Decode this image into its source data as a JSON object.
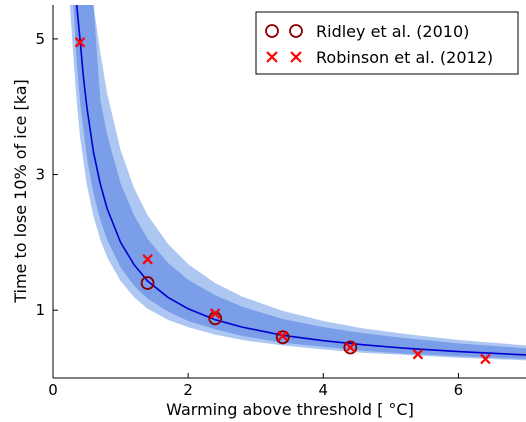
{
  "chart_data": {
    "type": "scatter",
    "xlabel": "Warming above threshold  [ °C]",
    "ylabel": "Time to lose 10% of ice [ka]",
    "xlim": [
      0,
      7
    ],
    "ylim": [
      0,
      5.5
    ],
    "x_ticks": [
      "0",
      "2",
      "4",
      "6"
    ],
    "y_ticks": [
      "1",
      "3",
      "5"
    ],
    "grid": false,
    "legend_position": "top-right",
    "bands": {
      "x": [
        0.25,
        0.3,
        0.35,
        0.4,
        0.5,
        0.6,
        0.7,
        0.8,
        1.0,
        1.2,
        1.4,
        1.7,
        2.0,
        2.4,
        2.8,
        3.4,
        4.0,
        4.6,
        5.2,
        6.0,
        7.0
      ],
      "outer_lower": [
        5.5,
        4.75,
        4.07,
        3.56,
        2.85,
        2.38,
        2.04,
        1.78,
        1.43,
        1.19,
        1.02,
        0.86,
        0.75,
        0.64,
        0.56,
        0.48,
        0.42,
        0.37,
        0.34,
        0.3,
        0.26
      ],
      "outer_upper": [
        5.5,
        5.5,
        5.5,
        5.5,
        5.5,
        5.5,
        4.8,
        4.2,
        3.36,
        2.8,
        2.4,
        1.98,
        1.68,
        1.4,
        1.2,
        0.99,
        0.84,
        0.73,
        0.65,
        0.56,
        0.48
      ],
      "inner_lower": [
        5.5,
        5.5,
        4.66,
        4.08,
        3.26,
        2.72,
        2.33,
        2.04,
        1.63,
        1.36,
        1.17,
        0.98,
        0.84,
        0.72,
        0.62,
        0.52,
        0.46,
        0.4,
        0.36,
        0.32,
        0.28
      ],
      "inner_upper": [
        5.5,
        5.5,
        5.5,
        5.5,
        5.5,
        5.5,
        4.1,
        3.59,
        2.87,
        2.4,
        2.05,
        1.7,
        1.45,
        1.22,
        1.05,
        0.87,
        0.75,
        0.66,
        0.59,
        0.51,
        0.44
      ]
    },
    "fit_line": {
      "x": [
        0.35,
        0.4,
        0.45,
        0.5,
        0.6,
        0.7,
        0.8,
        1.0,
        1.2,
        1.4,
        1.7,
        2.0,
        2.4,
        2.8,
        3.4,
        4.0,
        4.6,
        5.2,
        6.0,
        7.0
      ],
      "y": [
        5.5,
        5.0,
        4.44,
        4.0,
        3.33,
        2.86,
        2.5,
        2.0,
        1.67,
        1.43,
        1.19,
        1.02,
        0.86,
        0.75,
        0.63,
        0.55,
        0.49,
        0.44,
        0.39,
        0.34
      ]
    },
    "series": [
      {
        "name": "Ridley et al. (2010)",
        "marker": "circle",
        "color": "#8b0000",
        "points": [
          [
            1.4,
            1.4
          ],
          [
            2.4,
            0.88
          ],
          [
            3.4,
            0.6
          ],
          [
            4.4,
            0.45
          ]
        ]
      },
      {
        "name": "Robinson et al. (2012)",
        "marker": "x",
        "color": "#ff0000",
        "points": [
          [
            0.4,
            4.95
          ],
          [
            1.4,
            1.75
          ],
          [
            2.4,
            0.95
          ],
          [
            3.4,
            0.62
          ],
          [
            4.4,
            0.45
          ],
          [
            5.4,
            0.35
          ],
          [
            6.4,
            0.28
          ]
        ]
      }
    ],
    "colors": {
      "outer_band": "#aec7f2",
      "inner_band": "#7b9ee9",
      "fit_line": "#0000d0"
    }
  }
}
